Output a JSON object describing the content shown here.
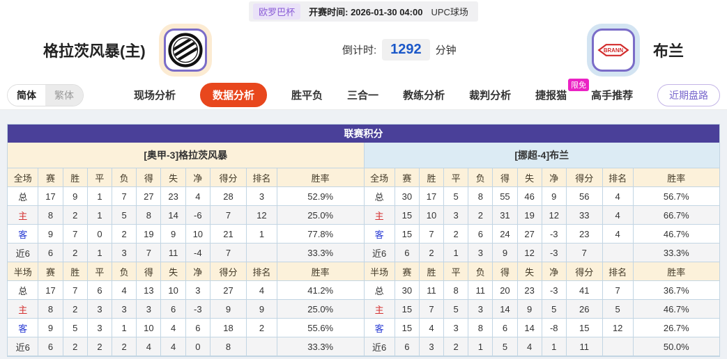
{
  "match_bar": {
    "league": "欧罗巴杯",
    "kickoff_label": "开赛时间:",
    "kickoff_time": "2026-01-30 04:00",
    "venue": "UPC球场"
  },
  "teams": {
    "home": {
      "name": "格拉茨风暴(主)"
    },
    "away": {
      "name": "布兰",
      "logo_text": "BRANN"
    },
    "countdown": {
      "label": "倒计时:",
      "value": "1292",
      "unit": "分钟"
    }
  },
  "nav": {
    "lang_toggle": {
      "simplified": "简体",
      "traditional": "繁体"
    },
    "tabs": [
      {
        "label": "现场分析",
        "active": false
      },
      {
        "label": "数据分析",
        "active": true
      },
      {
        "label": "胜平负",
        "active": false
      },
      {
        "label": "三合一",
        "active": false
      },
      {
        "label": "教练分析",
        "active": false
      },
      {
        "label": "裁判分析",
        "active": false
      },
      {
        "label": "捷报猫",
        "active": false,
        "badge": "限免"
      },
      {
        "label": "高手推荐",
        "active": false
      }
    ],
    "recent_button": "近期盘路"
  },
  "league_table": {
    "title": "联赛积分",
    "sides": [
      {
        "team_header": "[奥甲-3]格拉茨风暴",
        "sections": [
          {
            "header": [
              "全场",
              "赛",
              "胜",
              "平",
              "负",
              "得",
              "失",
              "净",
              "得分",
              "排名",
              "胜率"
            ],
            "rows": [
              {
                "label": "总",
                "cells": [
                  "17",
                  "9",
                  "1",
                  "7",
                  "27",
                  "23",
                  "4",
                  "28",
                  "3",
                  "52.9%"
                ]
              },
              {
                "label": "主",
                "cells": [
                  "8",
                  "2",
                  "1",
                  "5",
                  "8",
                  "14",
                  "-6",
                  "7",
                  "12",
                  "25.0%"
                ]
              },
              {
                "label": "客",
                "cells": [
                  "9",
                  "7",
                  "0",
                  "2",
                  "19",
                  "9",
                  "10",
                  "21",
                  "1",
                  "77.8%"
                ]
              },
              {
                "label": "近6",
                "cells": [
                  "6",
                  "2",
                  "1",
                  "3",
                  "7",
                  "11",
                  "-4",
                  "7",
                  "",
                  "33.3%"
                ]
              }
            ]
          },
          {
            "header": [
              "半场",
              "赛",
              "胜",
              "平",
              "负",
              "得",
              "失",
              "净",
              "得分",
              "排名",
              "胜率"
            ],
            "rows": [
              {
                "label": "总",
                "cells": [
                  "17",
                  "7",
                  "6",
                  "4",
                  "13",
                  "10",
                  "3",
                  "27",
                  "4",
                  "41.2%"
                ]
              },
              {
                "label": "主",
                "cells": [
                  "8",
                  "2",
                  "3",
                  "3",
                  "3",
                  "6",
                  "-3",
                  "9",
                  "9",
                  "25.0%"
                ]
              },
              {
                "label": "客",
                "cells": [
                  "9",
                  "5",
                  "3",
                  "1",
                  "10",
                  "4",
                  "6",
                  "18",
                  "2",
                  "55.6%"
                ]
              },
              {
                "label": "近6",
                "cells": [
                  "6",
                  "2",
                  "2",
                  "2",
                  "4",
                  "4",
                  "0",
                  "8",
                  "",
                  "33.3%"
                ]
              }
            ]
          }
        ]
      },
      {
        "team_header": "[挪超-4]布兰",
        "sections": [
          {
            "header": [
              "全场",
              "赛",
              "胜",
              "平",
              "负",
              "得",
              "失",
              "净",
              "得分",
              "排名",
              "胜率"
            ],
            "rows": [
              {
                "label": "总",
                "cells": [
                  "30",
                  "17",
                  "5",
                  "8",
                  "55",
                  "46",
                  "9",
                  "56",
                  "4",
                  "56.7%"
                ]
              },
              {
                "label": "主",
                "cells": [
                  "15",
                  "10",
                  "3",
                  "2",
                  "31",
                  "19",
                  "12",
                  "33",
                  "4",
                  "66.7%"
                ]
              },
              {
                "label": "客",
                "cells": [
                  "15",
                  "7",
                  "2",
                  "6",
                  "24",
                  "27",
                  "-3",
                  "23",
                  "4",
                  "46.7%"
                ]
              },
              {
                "label": "近6",
                "cells": [
                  "6",
                  "2",
                  "1",
                  "3",
                  "9",
                  "12",
                  "-3",
                  "7",
                  "",
                  "33.3%"
                ]
              }
            ]
          },
          {
            "header": [
              "半场",
              "赛",
              "胜",
              "平",
              "负",
              "得",
              "失",
              "净",
              "得分",
              "排名",
              "胜率"
            ],
            "rows": [
              {
                "label": "总",
                "cells": [
                  "30",
                  "11",
                  "8",
                  "11",
                  "20",
                  "23",
                  "-3",
                  "41",
                  "7",
                  "36.7%"
                ]
              },
              {
                "label": "主",
                "cells": [
                  "15",
                  "7",
                  "5",
                  "3",
                  "14",
                  "9",
                  "5",
                  "26",
                  "5",
                  "46.7%"
                ]
              },
              {
                "label": "客",
                "cells": [
                  "15",
                  "4",
                  "3",
                  "8",
                  "6",
                  "14",
                  "-8",
                  "15",
                  "12",
                  "26.7%"
                ]
              },
              {
                "label": "近6",
                "cells": [
                  "6",
                  "3",
                  "2",
                  "1",
                  "5",
                  "4",
                  "1",
                  "11",
                  "",
                  "50.0%"
                ]
              }
            ]
          }
        ]
      }
    ]
  },
  "colors": {
    "header_purple": "#4a4099",
    "band_cream": "#fcf1da",
    "band_blue": "#dcebf4",
    "active_tab_orange": "#e8471d",
    "badge_pink": "#eb22c4",
    "home_row_red": "#d43030",
    "away_row_blue": "#2a3cd4",
    "countdown_blue": "#1a57c8"
  }
}
